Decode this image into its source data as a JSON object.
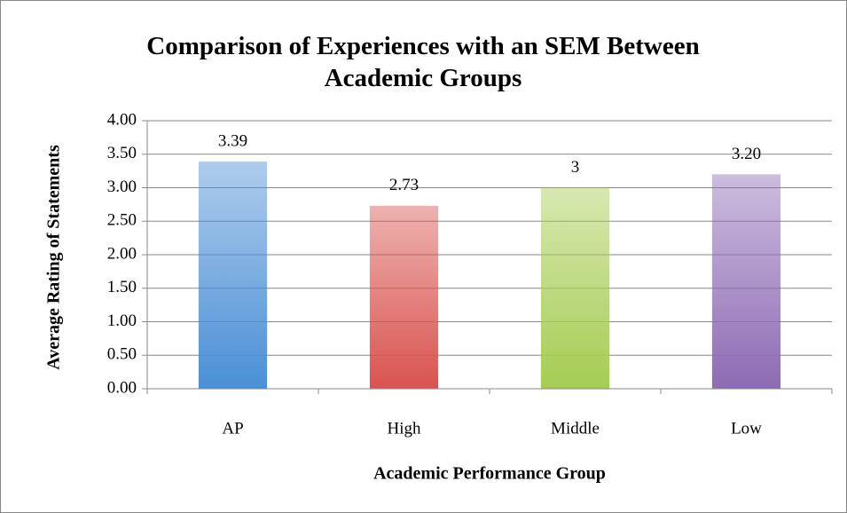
{
  "chart_data": {
    "type": "bar",
    "title": "Comparison of Experiences with an SEM Between Academic Groups",
    "x_label": "Academic Performance Group",
    "y_label": "Average Rating of Statements",
    "categories": [
      "AP",
      "High",
      "Middle",
      "Low"
    ],
    "values": [
      3.39,
      2.73,
      3,
      3.2
    ],
    "value_labels": [
      "3.39",
      "2.73",
      "3",
      "3.20"
    ],
    "colors": [
      "#4a8fd6",
      "#d9534f",
      "#a5cc52",
      "#8e6bb5"
    ],
    "ylim": [
      0,
      4
    ],
    "yticks": [
      {
        "value": 0,
        "label": "0.00"
      },
      {
        "value": 0.5,
        "label": "0.50"
      },
      {
        "value": 1,
        "label": "1.00"
      },
      {
        "value": 1.5,
        "label": "1.50"
      },
      {
        "value": 2,
        "label": "2.00"
      },
      {
        "value": 2.5,
        "label": "2.50"
      },
      {
        "value": 3,
        "label": "3.00"
      },
      {
        "value": 3.5,
        "label": "3.50"
      },
      {
        "value": 4,
        "label": "4.00"
      }
    ],
    "grid": true
  }
}
